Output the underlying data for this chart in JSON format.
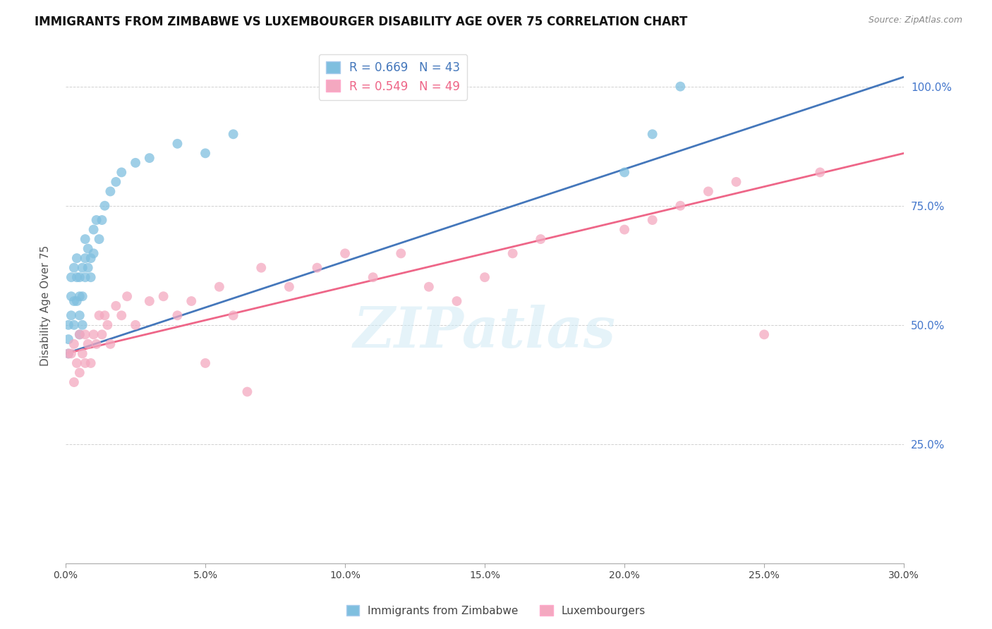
{
  "title": "IMMIGRANTS FROM ZIMBABWE VS LUXEMBOURGER DISABILITY AGE OVER 75 CORRELATION CHART",
  "source": "Source: ZipAtlas.com",
  "ylabel": "Disability Age Over 75",
  "xlim": [
    0.0,
    0.3
  ],
  "ylim": [
    0.0,
    1.08
  ],
  "xtick_vals": [
    0.0,
    0.05,
    0.1,
    0.15,
    0.2,
    0.25,
    0.3
  ],
  "xtick_labels": [
    "0.0%",
    "5.0%",
    "10.0%",
    "15.0%",
    "20.0%",
    "25.0%",
    "30.0%"
  ],
  "ytick_vals": [
    0.25,
    0.5,
    0.75,
    1.0
  ],
  "ytick_labels": [
    "25.0%",
    "50.0%",
    "75.0%",
    "100.0%"
  ],
  "blue_color": "#7fbfdf",
  "pink_color": "#f4a8c0",
  "blue_line_color": "#4477bb",
  "pink_line_color": "#ee6688",
  "blue_label": "R = 0.669   N = 43",
  "pink_label": "R = 0.549   N = 49",
  "legend_label_blue": "Immigrants from Zimbabwe",
  "legend_label_pink": "Luxembourgers",
  "watermark": "ZIPatlas",
  "series_blue_x": [
    0.001,
    0.001,
    0.001,
    0.002,
    0.002,
    0.002,
    0.003,
    0.003,
    0.003,
    0.004,
    0.004,
    0.004,
    0.005,
    0.005,
    0.005,
    0.005,
    0.006,
    0.006,
    0.006,
    0.007,
    0.007,
    0.007,
    0.008,
    0.008,
    0.009,
    0.009,
    0.01,
    0.01,
    0.011,
    0.012,
    0.013,
    0.014,
    0.016,
    0.018,
    0.02,
    0.025,
    0.03,
    0.04,
    0.05,
    0.06,
    0.2,
    0.21,
    0.22
  ],
  "series_blue_y": [
    0.44,
    0.47,
    0.5,
    0.52,
    0.56,
    0.6,
    0.5,
    0.55,
    0.62,
    0.55,
    0.6,
    0.64,
    0.48,
    0.52,
    0.56,
    0.6,
    0.5,
    0.56,
    0.62,
    0.6,
    0.64,
    0.68,
    0.62,
    0.66,
    0.6,
    0.64,
    0.65,
    0.7,
    0.72,
    0.68,
    0.72,
    0.75,
    0.78,
    0.8,
    0.82,
    0.84,
    0.85,
    0.88,
    0.86,
    0.9,
    0.82,
    0.9,
    1.0
  ],
  "series_pink_x": [
    0.001,
    0.002,
    0.003,
    0.003,
    0.004,
    0.005,
    0.005,
    0.006,
    0.007,
    0.007,
    0.008,
    0.009,
    0.01,
    0.011,
    0.012,
    0.013,
    0.014,
    0.015,
    0.016,
    0.018,
    0.02,
    0.022,
    0.025,
    0.03,
    0.035,
    0.04,
    0.045,
    0.05,
    0.055,
    0.06,
    0.065,
    0.07,
    0.08,
    0.09,
    0.1,
    0.11,
    0.12,
    0.13,
    0.14,
    0.15,
    0.16,
    0.17,
    0.2,
    0.21,
    0.22,
    0.23,
    0.24,
    0.25,
    0.27
  ],
  "series_pink_y": [
    0.44,
    0.44,
    0.38,
    0.46,
    0.42,
    0.4,
    0.48,
    0.44,
    0.42,
    0.48,
    0.46,
    0.42,
    0.48,
    0.46,
    0.52,
    0.48,
    0.52,
    0.5,
    0.46,
    0.54,
    0.52,
    0.56,
    0.5,
    0.55,
    0.56,
    0.52,
    0.55,
    0.42,
    0.58,
    0.52,
    0.36,
    0.62,
    0.58,
    0.62,
    0.65,
    0.6,
    0.65,
    0.58,
    0.55,
    0.6,
    0.65,
    0.68,
    0.7,
    0.72,
    0.75,
    0.78,
    0.8,
    0.48,
    0.82
  ],
  "blue_line_x": [
    0.0,
    0.3
  ],
  "blue_line_y": [
    0.44,
    1.02
  ],
  "pink_line_x": [
    0.0,
    0.3
  ],
  "pink_line_y": [
    0.44,
    0.86
  ]
}
